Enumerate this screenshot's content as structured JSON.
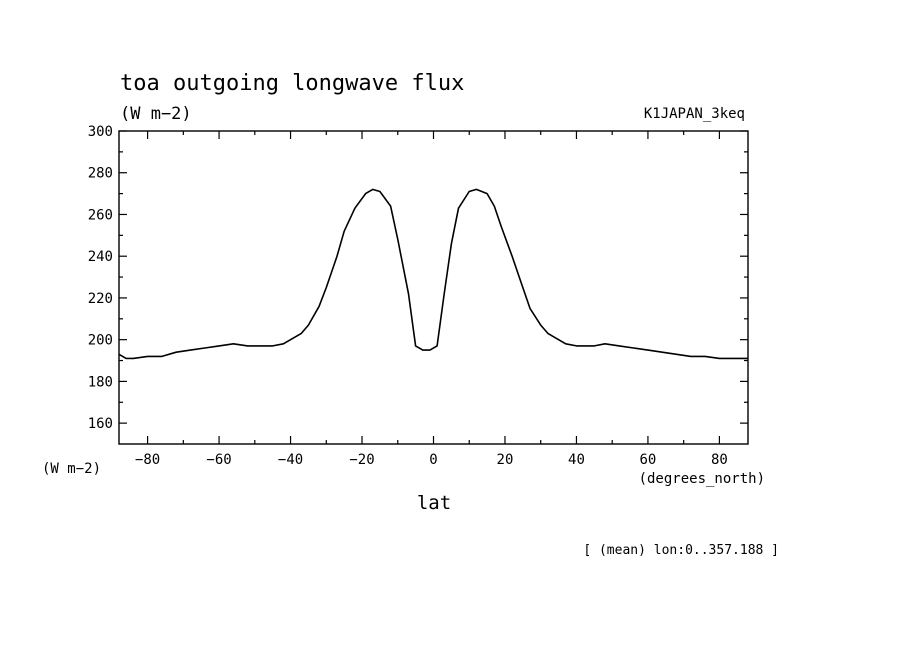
{
  "chart_data": {
    "type": "line",
    "title": "toa outgoing longwave flux",
    "units": "(W m−2)",
    "run_label": "K1JAPAN_3keq",
    "ylabel": "(W m−2)",
    "xlabel": "lat",
    "xunits": "(degrees_north)",
    "footnote": "[ (mean) lon:0..357.188 ]",
    "xlim": [
      -88,
      88
    ],
    "ylim": [
      150,
      300
    ],
    "xticks": [
      -80,
      -60,
      -40,
      -20,
      0,
      20,
      40,
      60,
      80
    ],
    "yticks": [
      160,
      180,
      200,
      220,
      240,
      260,
      280,
      300
    ],
    "grid": false,
    "series": [
      {
        "x": [
          -88,
          -86,
          -84,
          -80,
          -76,
          -72,
          -68,
          -64,
          -60,
          -56,
          -52,
          -48,
          -45,
          -42,
          -40,
          -37,
          -35,
          -32,
          -30,
          -27,
          -25,
          -22,
          -19,
          -17,
          -15,
          -12,
          -10,
          -7,
          -5,
          -3,
          -1,
          1,
          3,
          5,
          7,
          10,
          12,
          15,
          17,
          19,
          22,
          25,
          27,
          30,
          32,
          35,
          37,
          40,
          42,
          45,
          48,
          52,
          56,
          60,
          64,
          68,
          72,
          76,
          80,
          84,
          86,
          88
        ],
        "y": [
          193,
          191,
          191,
          192,
          192,
          194,
          195,
          196,
          197,
          198,
          197,
          197,
          197,
          198,
          200,
          203,
          207,
          216,
          225,
          240,
          252,
          263,
          270,
          272,
          271,
          264,
          248,
          222,
          197,
          195,
          195,
          197,
          222,
          246,
          263,
          271,
          272,
          270,
          264,
          254,
          240,
          225,
          215,
          207,
          203,
          200,
          198,
          197,
          197,
          197,
          198,
          197,
          196,
          195,
          194,
          193,
          192,
          192,
          191,
          191,
          191,
          191
        ]
      }
    ]
  }
}
